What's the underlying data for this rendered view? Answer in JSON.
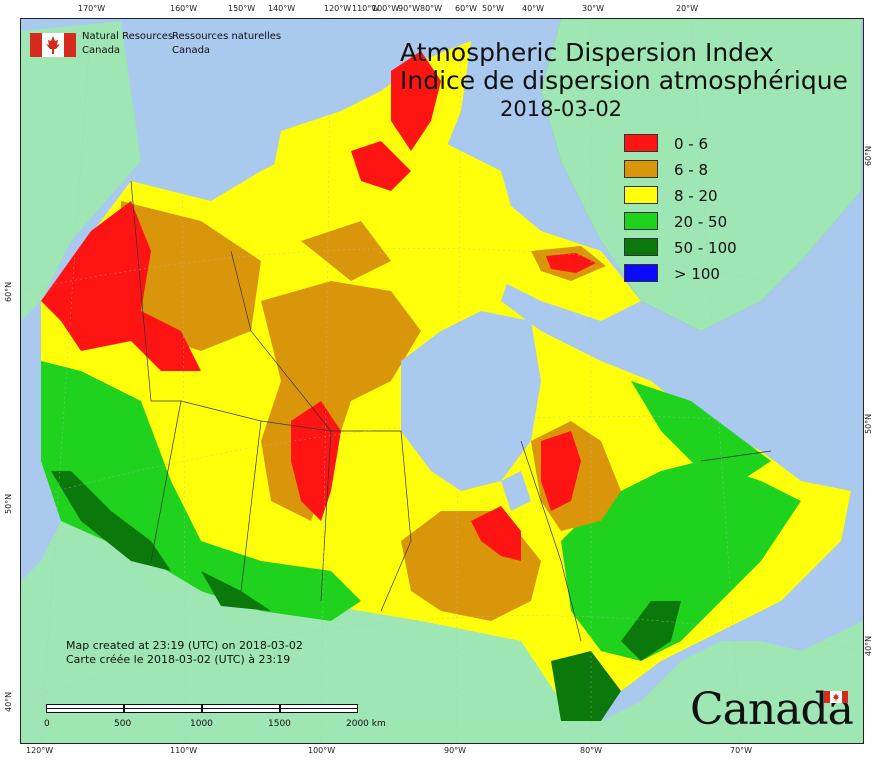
{
  "title": {
    "en": "Atmospheric Dispersion Index",
    "fr": "Indice de dispersion atmosphérique",
    "date": "2018-03-02"
  },
  "agency": {
    "en_line1": "Natural Resources",
    "en_line2": "Canada",
    "fr_line1": "Ressources naturelles",
    "fr_line2": "Canada",
    "logo": "canada-flag-icon"
  },
  "legend": [
    {
      "label": "0 - 6",
      "color": "#ff1414"
    },
    {
      "label": "6 - 8",
      "color": "#d9960a"
    },
    {
      "label": "8 - 20",
      "color": "#ffff0a"
    },
    {
      "label": "20 - 50",
      "color": "#1ed21e"
    },
    {
      "label": "50 - 100",
      "color": "#0a780a"
    },
    {
      "label": "> 100",
      "color": "#0a0aff"
    }
  ],
  "colors": {
    "ocean": "#a9c9ee",
    "land_outside": "#9ee6b4"
  },
  "longitudes_top": [
    "170°W",
    "160°W",
    "150°W",
    "140°W",
    "120°W",
    "110°W",
    "100°W",
    "90°W",
    "80°W",
    "60°W",
    "50°W",
    "40°W",
    "30°W",
    "20°W"
  ],
  "longitudes_bottom": [
    "120°W",
    "110°W",
    "100°W",
    "90°W",
    "80°W",
    "70°W"
  ],
  "latitudes_left": [
    "60°N",
    "50°N",
    "40°N"
  ],
  "latitudes_right": [
    "60°N",
    "50°N",
    "40°N"
  ],
  "notes": {
    "line1": "Map created at 23:19 (UTC) on 2018-03-02",
    "line2": "Carte créée le 2018-03-02 (UTC) à 23:19"
  },
  "scale": {
    "ticks": [
      "0",
      "500",
      "1000",
      "1500",
      "2000 km"
    ]
  },
  "wordmark": "Canada"
}
